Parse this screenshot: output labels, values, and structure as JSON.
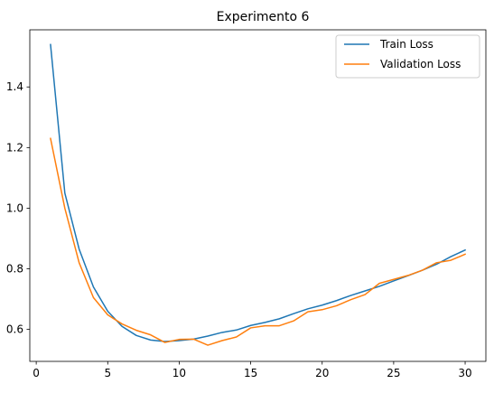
{
  "chart_data": {
    "type": "line",
    "title": "Experimento 6",
    "xlabel": "",
    "ylabel": "",
    "xlim": [
      -0.45,
      31.45
    ],
    "ylim": [
      0.4945,
      1.5885
    ],
    "x_ticks": [
      0,
      5,
      10,
      15,
      20,
      25,
      30
    ],
    "y_ticks": [
      0.6,
      0.8,
      1.0,
      1.2,
      1.4
    ],
    "x_tick_labels": [
      "0",
      "5",
      "10",
      "15",
      "20",
      "25",
      "30"
    ],
    "y_tick_labels": [
      "0.6",
      "0.8",
      "1.0",
      "1.2",
      "1.4"
    ],
    "grid": false,
    "legend_position": "upper-right",
    "x": [
      1,
      2,
      3,
      4,
      5,
      6,
      7,
      8,
      9,
      10,
      11,
      12,
      13,
      14,
      15,
      16,
      17,
      18,
      19,
      20,
      21,
      22,
      23,
      24,
      25,
      26,
      27,
      28,
      29,
      30
    ],
    "series": [
      {
        "name": "Train Loss",
        "color": "#1f77b4",
        "values": [
          1.54,
          1.05,
          0.865,
          0.74,
          0.66,
          0.61,
          0.58,
          0.565,
          0.56,
          0.563,
          0.568,
          0.578,
          0.59,
          0.598,
          0.613,
          0.623,
          0.635,
          0.652,
          0.668,
          0.68,
          0.695,
          0.712,
          0.727,
          0.742,
          0.76,
          0.777,
          0.795,
          0.815,
          0.84,
          0.862
        ]
      },
      {
        "name": "Validation Loss",
        "color": "#ff7f0e",
        "values": [
          1.23,
          1.0,
          0.82,
          0.705,
          0.648,
          0.618,
          0.597,
          0.582,
          0.557,
          0.567,
          0.568,
          0.548,
          0.563,
          0.575,
          0.605,
          0.612,
          0.612,
          0.628,
          0.658,
          0.665,
          0.678,
          0.698,
          0.715,
          0.752,
          0.765,
          0.778,
          0.795,
          0.82,
          0.828,
          0.848
        ]
      }
    ]
  }
}
